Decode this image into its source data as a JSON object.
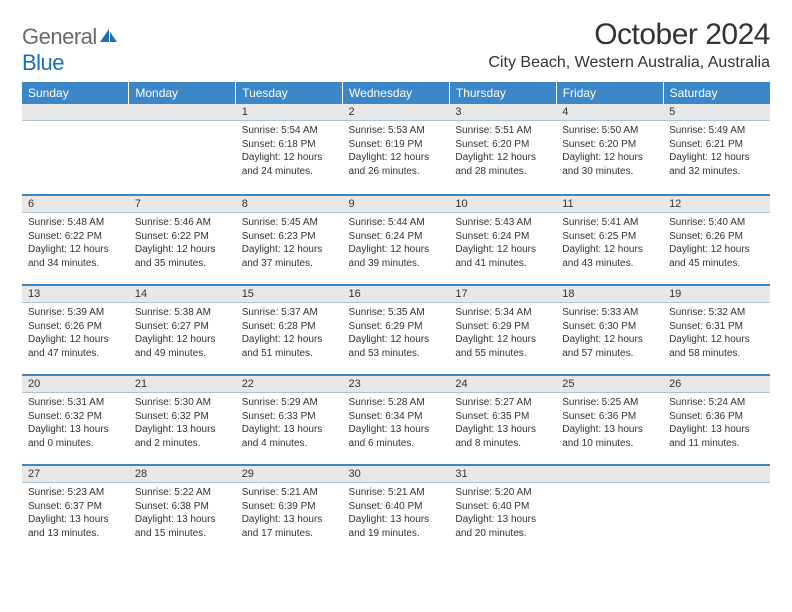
{
  "logo": {
    "part1": "General",
    "part2": "Blue"
  },
  "title": "October 2024",
  "location": "City Beach, Western Australia, Australia",
  "colors": {
    "header_bg": "#3b87c8",
    "header_text": "#ffffff",
    "daynum_bg": "#e8e8e8",
    "week_divider": "#3b87c8",
    "logo_gray": "#6a6a6a",
    "logo_blue": "#1b6fb3",
    "text": "#333333"
  },
  "day_headers": [
    "Sunday",
    "Monday",
    "Tuesday",
    "Wednesday",
    "Thursday",
    "Friday",
    "Saturday"
  ],
  "weeks": [
    [
      null,
      null,
      {
        "n": "1",
        "sunrise": "5:54 AM",
        "sunset": "6:18 PM",
        "daylight": "12 hours and 24 minutes."
      },
      {
        "n": "2",
        "sunrise": "5:53 AM",
        "sunset": "6:19 PM",
        "daylight": "12 hours and 26 minutes."
      },
      {
        "n": "3",
        "sunrise": "5:51 AM",
        "sunset": "6:20 PM",
        "daylight": "12 hours and 28 minutes."
      },
      {
        "n": "4",
        "sunrise": "5:50 AM",
        "sunset": "6:20 PM",
        "daylight": "12 hours and 30 minutes."
      },
      {
        "n": "5",
        "sunrise": "5:49 AM",
        "sunset": "6:21 PM",
        "daylight": "12 hours and 32 minutes."
      }
    ],
    [
      {
        "n": "6",
        "sunrise": "5:48 AM",
        "sunset": "6:22 PM",
        "daylight": "12 hours and 34 minutes."
      },
      {
        "n": "7",
        "sunrise": "5:46 AM",
        "sunset": "6:22 PM",
        "daylight": "12 hours and 35 minutes."
      },
      {
        "n": "8",
        "sunrise": "5:45 AM",
        "sunset": "6:23 PM",
        "daylight": "12 hours and 37 minutes."
      },
      {
        "n": "9",
        "sunrise": "5:44 AM",
        "sunset": "6:24 PM",
        "daylight": "12 hours and 39 minutes."
      },
      {
        "n": "10",
        "sunrise": "5:43 AM",
        "sunset": "6:24 PM",
        "daylight": "12 hours and 41 minutes."
      },
      {
        "n": "11",
        "sunrise": "5:41 AM",
        "sunset": "6:25 PM",
        "daylight": "12 hours and 43 minutes."
      },
      {
        "n": "12",
        "sunrise": "5:40 AM",
        "sunset": "6:26 PM",
        "daylight": "12 hours and 45 minutes."
      }
    ],
    [
      {
        "n": "13",
        "sunrise": "5:39 AM",
        "sunset": "6:26 PM",
        "daylight": "12 hours and 47 minutes."
      },
      {
        "n": "14",
        "sunrise": "5:38 AM",
        "sunset": "6:27 PM",
        "daylight": "12 hours and 49 minutes."
      },
      {
        "n": "15",
        "sunrise": "5:37 AM",
        "sunset": "6:28 PM",
        "daylight": "12 hours and 51 minutes."
      },
      {
        "n": "16",
        "sunrise": "5:35 AM",
        "sunset": "6:29 PM",
        "daylight": "12 hours and 53 minutes."
      },
      {
        "n": "17",
        "sunrise": "5:34 AM",
        "sunset": "6:29 PM",
        "daylight": "12 hours and 55 minutes."
      },
      {
        "n": "18",
        "sunrise": "5:33 AM",
        "sunset": "6:30 PM",
        "daylight": "12 hours and 57 minutes."
      },
      {
        "n": "19",
        "sunrise": "5:32 AM",
        "sunset": "6:31 PM",
        "daylight": "12 hours and 58 minutes."
      }
    ],
    [
      {
        "n": "20",
        "sunrise": "5:31 AM",
        "sunset": "6:32 PM",
        "daylight": "13 hours and 0 minutes."
      },
      {
        "n": "21",
        "sunrise": "5:30 AM",
        "sunset": "6:32 PM",
        "daylight": "13 hours and 2 minutes."
      },
      {
        "n": "22",
        "sunrise": "5:29 AM",
        "sunset": "6:33 PM",
        "daylight": "13 hours and 4 minutes."
      },
      {
        "n": "23",
        "sunrise": "5:28 AM",
        "sunset": "6:34 PM",
        "daylight": "13 hours and 6 minutes."
      },
      {
        "n": "24",
        "sunrise": "5:27 AM",
        "sunset": "6:35 PM",
        "daylight": "13 hours and 8 minutes."
      },
      {
        "n": "25",
        "sunrise": "5:25 AM",
        "sunset": "6:36 PM",
        "daylight": "13 hours and 10 minutes."
      },
      {
        "n": "26",
        "sunrise": "5:24 AM",
        "sunset": "6:36 PM",
        "daylight": "13 hours and 11 minutes."
      }
    ],
    [
      {
        "n": "27",
        "sunrise": "5:23 AM",
        "sunset": "6:37 PM",
        "daylight": "13 hours and 13 minutes."
      },
      {
        "n": "28",
        "sunrise": "5:22 AM",
        "sunset": "6:38 PM",
        "daylight": "13 hours and 15 minutes."
      },
      {
        "n": "29",
        "sunrise": "5:21 AM",
        "sunset": "6:39 PM",
        "daylight": "13 hours and 17 minutes."
      },
      {
        "n": "30",
        "sunrise": "5:21 AM",
        "sunset": "6:40 PM",
        "daylight": "13 hours and 19 minutes."
      },
      {
        "n": "31",
        "sunrise": "5:20 AM",
        "sunset": "6:40 PM",
        "daylight": "13 hours and 20 minutes."
      },
      null,
      null
    ]
  ],
  "labels": {
    "sunrise": "Sunrise:",
    "sunset": "Sunset:",
    "daylight": "Daylight:"
  }
}
